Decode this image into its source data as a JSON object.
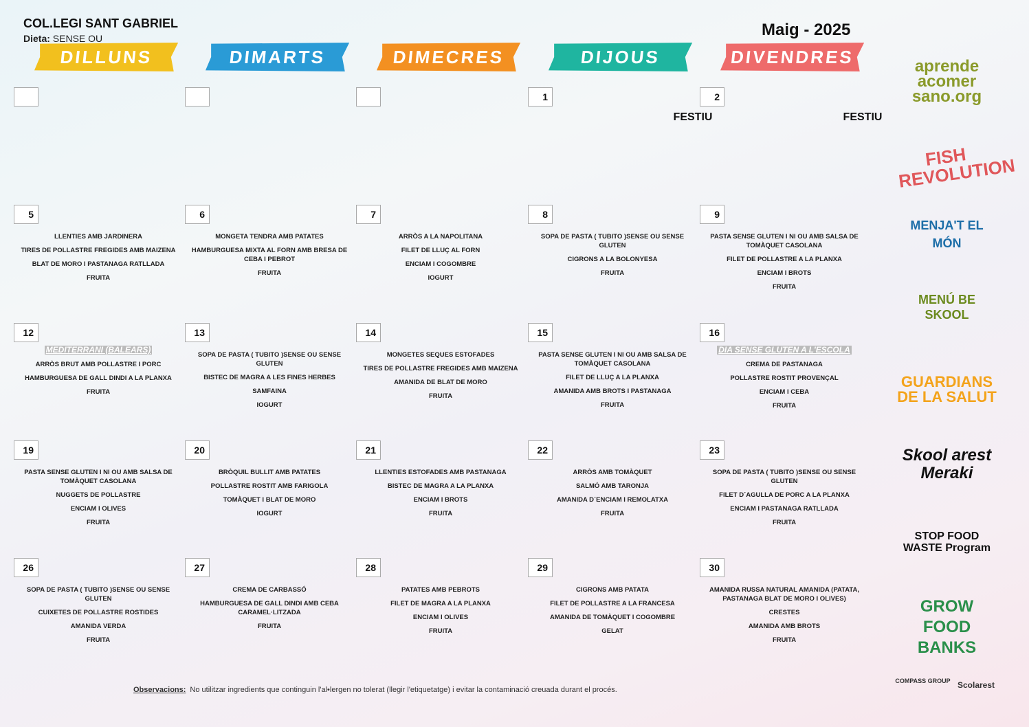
{
  "header": {
    "school": "COL.LEGI SANT GABRIEL",
    "diet_label": "Dieta:",
    "diet": "SENSE OU",
    "month": "Maig - 2025"
  },
  "days": [
    "DILLUNS",
    "DIMARTS",
    "DIMECRES",
    "DIJOUS",
    "DIVENDRES"
  ],
  "weeks": [
    [
      null,
      null,
      null,
      {
        "day": 1,
        "holiday": "FESTIU"
      },
      {
        "day": 2,
        "holiday": "FESTIU"
      }
    ],
    [
      {
        "day": 5,
        "items": [
          "LLENTIES AMB JARDINERA",
          "TIRES DE POLLASTRE FREGIDES AMB MAIZENA",
          "BLAT DE MORO I PASTANAGA RATLLADA",
          "FRUITA"
        ]
      },
      {
        "day": 6,
        "items": [
          "MONGETA TENDRA AMB PATATES",
          "HAMBURGUESA MIXTA AL FORN AMB BRESA DE CEBA I PEBROT",
          "FRUITA"
        ]
      },
      {
        "day": 7,
        "items": [
          "ARRÒS A LA NAPOLITANA",
          "FILET DE LLUÇ AL FORN",
          "ENCIAM I COGOMBRE",
          "IOGURT"
        ]
      },
      {
        "day": 8,
        "items": [
          "SOPA DE PASTA ( TUBITO )SENSE OU SENSE GLUTEN",
          "CIGRONS A LA BOLONYESA",
          "FRUITA"
        ]
      },
      {
        "day": 9,
        "items": [
          "PASTA SENSE GLUTEN I NI OU AMB SALSA DE TOMÀQUET CASOLANA",
          "FILET DE POLLASTRE A LA PLANXA",
          "ENCIAM I BROTS",
          "FRUITA"
        ]
      }
    ],
    [
      {
        "day": 12,
        "note": "MEDITERRANI (BALEARS)",
        "items": [
          "ARRÒS BRUT AMB POLLASTRE I PORC",
          "HAMBURGUESA DE GALL DINDI A LA PLANXA",
          "FRUITA"
        ]
      },
      {
        "day": 13,
        "items": [
          "SOPA DE PASTA ( TUBITO )SENSE OU SENSE GLUTEN",
          "BISTEC DE MAGRA A LES FINES HERBES",
          "SAMFAINA",
          "IOGURT"
        ]
      },
      {
        "day": 14,
        "items": [
          "MONGETES SEQUES ESTOFADES",
          "TIRES DE POLLASTRE FREGIDES AMB MAIZENA",
          "AMANIDA DE BLAT DE MORO",
          "FRUITA"
        ]
      },
      {
        "day": 15,
        "items": [
          "PASTA SENSE GLUTEN I NI OU AMB SALSA DE TOMÀQUET CASOLANA",
          "FILET DE LLUÇ A LA PLANXA",
          "AMANIDA AMB BROTS I PASTANAGA",
          "FRUITA"
        ]
      },
      {
        "day": 16,
        "note": "DIA SENSE GLUTEN A L'ESCOLA",
        "items": [
          "CREMA DE PASTANAGA",
          "POLLASTRE ROSTIT PROVENÇAL",
          "ENCIAM I CEBA",
          "FRUITA"
        ]
      }
    ],
    [
      {
        "day": 19,
        "items": [
          "PASTA SENSE GLUTEN I NI OU AMB SALSA DE TOMÀQUET CASOLANA",
          "NUGGETS DE POLLASTRE",
          "ENCIAM I OLIVES",
          "FRUITA"
        ]
      },
      {
        "day": 20,
        "items": [
          "BRÒQUIL BULLIT AMB PATATES",
          "POLLASTRE ROSTIT AMB FARIGOLA",
          "TOMÀQUET I BLAT DE MORO",
          "IOGURT"
        ]
      },
      {
        "day": 21,
        "items": [
          "LLENTIES ESTOFADES AMB PASTANAGA",
          "BISTEC DE MAGRA A LA PLANXA",
          "ENCIAM I BROTS",
          "FRUITA"
        ]
      },
      {
        "day": 22,
        "items": [
          "ARRÒS AMB TOMÀQUET",
          "SALMÓ AMB TARONJA",
          "AMANIDA D´ENCIAM I REMOLATXA",
          "FRUITA"
        ]
      },
      {
        "day": 23,
        "items": [
          "SOPA DE PASTA ( TUBITO )SENSE OU SENSE GLUTEN",
          "FILET D´AGULLA DE PORC A LA PLANXA",
          "ENCIAM I PASTANAGA RATLLADA",
          "FRUITA"
        ]
      }
    ],
    [
      {
        "day": 26,
        "items": [
          "SOPA DE PASTA ( TUBITO )SENSE OU SENSE GLUTEN",
          "CUIXETES DE POLLASTRE ROSTIDES",
          "AMANIDA VERDA",
          "FRUITA"
        ]
      },
      {
        "day": 27,
        "items": [
          "CREMA DE CARBASSÓ",
          "HAMBURGUESA DE GALL DINDI AMB CEBA CARAMEL·LITZADA",
          "FRUITA"
        ]
      },
      {
        "day": 28,
        "items": [
          "PATATES AMB PEBROTS",
          "FILET DE MAGRA A LA PLANXA",
          "ENCIAM I OLIVES",
          "FRUITA"
        ]
      },
      {
        "day": 29,
        "items": [
          "CIGRONS AMB PATATA",
          "FILET DE POLLASTRE A LA FRANCESA",
          "AMANIDA DE TOMÀQUET I COGOMBRE",
          "GELAT"
        ]
      },
      {
        "day": 30,
        "items": [
          "AMANIDA RUSSA NATURAL AMANIDA (PATATA, PASTANAGA BLAT DE MORO I OLIVES)",
          "CRESTES",
          "AMANIDA AMB BROTS",
          "FRUITA"
        ]
      }
    ]
  ],
  "footer": {
    "label": "Observacions:",
    "text": "No utilitzar ingredients que continguin l'al•lergen no tolerat (llegir l'etiquetatge) i evitar la contaminació creuada durant el procés."
  },
  "logos": [
    "aprende acomer sano.org",
    "FISH REVOLUTION",
    "MENJA'T EL MÓN",
    "MENÚ BE SKOOL",
    "GUARDIANS DE LA SALUT",
    "Skool arest Meraki",
    "STOP FOOD WASTE Program",
    "GROW FOOD BANKS",
    "COMPASS GROUP",
    "Scolarest"
  ]
}
